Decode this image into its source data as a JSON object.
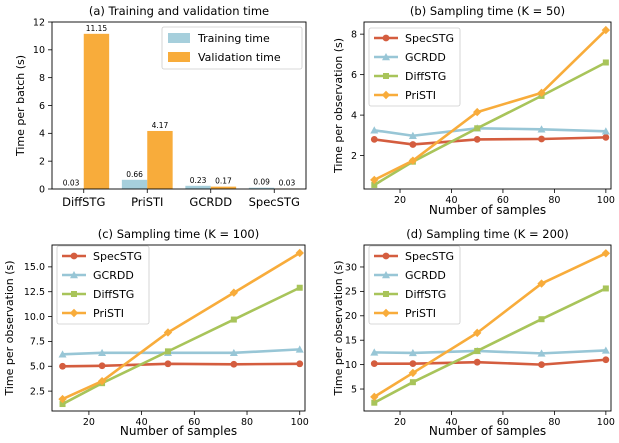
{
  "colors": {
    "training": "#a6cfdc",
    "validation": "#f8ac3b",
    "SpecSTG": "#d45d3f",
    "GCRDD": "#98c6d6",
    "DiffSTG": "#a8c45a",
    "PriSTI": "#f8ac3b"
  },
  "chart_data": [
    {
      "type": "bar",
      "title": "(a) Training and validation time",
      "xlabel": "",
      "ylabel": "Time per batch (s)",
      "categories": [
        "DiffSTG",
        "PriSTI",
        "GCRDD",
        "SpecSTG"
      ],
      "ylim": [
        0,
        12
      ],
      "yticks": [
        0,
        2,
        4,
        6,
        8,
        10,
        12
      ],
      "legend_position": "top-right",
      "series": [
        {
          "name": "Training time",
          "values": [
            0.03,
            0.66,
            0.23,
            0.09
          ],
          "labels": [
            "0.03",
            "0.66",
            "0.23",
            "0.09"
          ],
          "color_key": "training"
        },
        {
          "name": "Validation time",
          "values": [
            11.15,
            4.17,
            0.17,
            0.03
          ],
          "labels": [
            "11.15",
            "4.17",
            "0.17",
            "0.03"
          ],
          "color_key": "validation"
        }
      ]
    },
    {
      "type": "line",
      "title": "(b) Sampling time (K = 50)",
      "xlabel": "Number of samples",
      "ylabel": "Time per observation (s)",
      "x": [
        10,
        25,
        50,
        75,
        100
      ],
      "xlim": [
        6,
        102
      ],
      "xticks": [
        20,
        40,
        60,
        80,
        100
      ],
      "ylim": [
        0.35,
        8.6
      ],
      "yticks": [
        2,
        4,
        6,
        8
      ],
      "yticklabels": [
        "2",
        "4",
        "6",
        "8"
      ],
      "legend_position": "top-left",
      "series": [
        {
          "name": "SpecSTG",
          "marker": "circle",
          "values": [
            2.8,
            2.55,
            2.8,
            2.82,
            2.9
          ]
        },
        {
          "name": "GCRDD",
          "marker": "triangle",
          "values": [
            3.25,
            2.98,
            3.35,
            3.3,
            3.2
          ]
        },
        {
          "name": "DiffSTG",
          "marker": "square",
          "values": [
            0.55,
            1.7,
            3.35,
            4.95,
            6.6
          ]
        },
        {
          "name": "PriSTI",
          "marker": "diamond",
          "values": [
            0.8,
            1.75,
            4.15,
            5.1,
            8.2
          ]
        }
      ]
    },
    {
      "type": "line",
      "title": "(c) Sampling time (K = 100)",
      "xlabel": "Number of samples",
      "ylabel": "Time per observation (s)",
      "x": [
        10,
        25,
        50,
        75,
        100
      ],
      "xlim": [
        6,
        102
      ],
      "xticks": [
        20,
        40,
        60,
        80,
        100
      ],
      "ylim": [
        0.5,
        17.2
      ],
      "yticks": [
        2.5,
        5.0,
        7.5,
        10.0,
        12.5,
        15.0
      ],
      "yticklabels": [
        "2.5",
        "5.0",
        "7.5",
        "10.0",
        "12.5",
        "15.0"
      ],
      "legend_position": "top-left",
      "series": [
        {
          "name": "SpecSTG",
          "marker": "circle",
          "values": [
            5.0,
            5.05,
            5.25,
            5.2,
            5.25
          ]
        },
        {
          "name": "GCRDD",
          "marker": "triangle",
          "values": [
            6.2,
            6.35,
            6.35,
            6.35,
            6.7
          ]
        },
        {
          "name": "DiffSTG",
          "marker": "square",
          "values": [
            1.2,
            3.3,
            6.5,
            9.7,
            12.9
          ]
        },
        {
          "name": "PriSTI",
          "marker": "diamond",
          "values": [
            1.7,
            3.5,
            8.4,
            12.4,
            16.4
          ]
        }
      ]
    },
    {
      "type": "line",
      "title": "(d) Sampling time (K = 200)",
      "xlabel": "Number of samples",
      "ylabel": "Time per observation (s)",
      "x": [
        10,
        25,
        50,
        75,
        100
      ],
      "xlim": [
        6,
        102
      ],
      "xticks": [
        20,
        40,
        60,
        80,
        100
      ],
      "ylim": [
        0.5,
        34.5
      ],
      "yticks": [
        5,
        10,
        15,
        20,
        25,
        30
      ],
      "yticklabels": [
        "5",
        "10",
        "15",
        "20",
        "25",
        "30"
      ],
      "legend_position": "top-left",
      "series": [
        {
          "name": "SpecSTG",
          "marker": "circle",
          "values": [
            10.2,
            10.2,
            10.5,
            10.0,
            11.0
          ]
        },
        {
          "name": "GCRDD",
          "marker": "triangle",
          "values": [
            12.5,
            12.4,
            12.8,
            12.3,
            12.9
          ]
        },
        {
          "name": "DiffSTG",
          "marker": "square",
          "values": [
            2.2,
            6.4,
            12.8,
            19.3,
            25.6
          ]
        },
        {
          "name": "PriSTI",
          "marker": "diamond",
          "values": [
            3.4,
            8.3,
            16.5,
            26.6,
            32.8
          ]
        }
      ]
    }
  ]
}
